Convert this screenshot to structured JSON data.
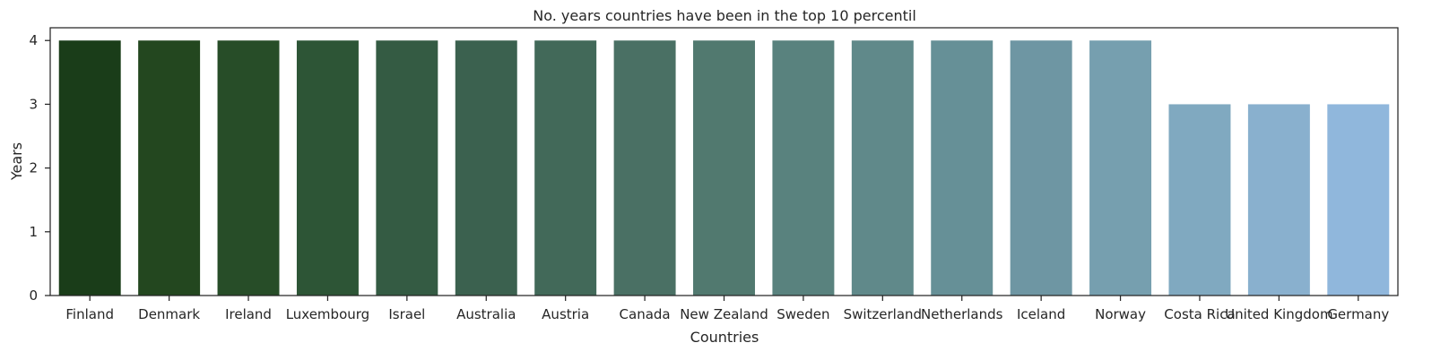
{
  "chart_data": {
    "type": "bar",
    "title": "No. years countries have been in the top 10 percentil",
    "xlabel": "Countries",
    "ylabel": "Years",
    "categories": [
      "Finland",
      "Denmark",
      "Ireland",
      "Luxembourg",
      "Israel",
      "Australia",
      "Austria",
      "Canada",
      "New Zealand",
      "Sweden",
      "Switzerland",
      "Netherlands",
      "Iceland",
      "Norway",
      "Costa Rica",
      "United Kingdom",
      "Germany"
    ],
    "values": [
      4,
      4,
      4,
      4,
      4,
      4,
      4,
      4,
      4,
      4,
      4,
      4,
      4,
      4,
      3,
      3,
      3
    ],
    "ylim": [
      0,
      4.2
    ],
    "yticks": [
      0,
      1,
      2,
      3,
      4
    ],
    "grid": false,
    "colors": [
      "#1a3d19",
      "#23471f",
      "#274d28",
      "#2d5536",
      "#345b43",
      "#3b614f",
      "#426959",
      "#4a7064",
      "#51796f",
      "#59827e",
      "#60898a",
      "#669097",
      "#6e96a3",
      "#769faf",
      "#80a9c0",
      "#89b0ce",
      "#90b7dc"
    ]
  }
}
